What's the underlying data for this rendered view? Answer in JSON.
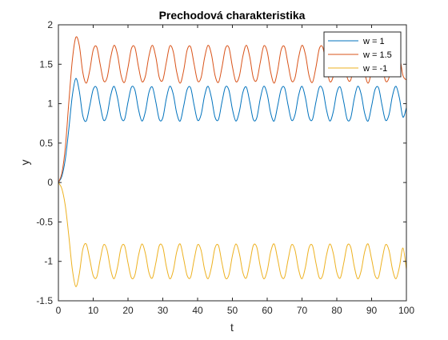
{
  "chart_data": {
    "type": "line",
    "title": "Prechodová charakteristika",
    "xlabel": "t",
    "ylabel": "y",
    "xlim": [
      0,
      100
    ],
    "ylim": [
      -1.5,
      2
    ],
    "x_ticks": [
      0,
      10,
      20,
      30,
      40,
      50,
      60,
      70,
      80,
      90,
      100
    ],
    "x_tick_labels": [
      "0",
      "10",
      "20",
      "30",
      "40",
      "50",
      "60",
      "70",
      "80",
      "90",
      "100"
    ],
    "y_ticks": [
      -1.5,
      -1,
      -0.5,
      0,
      0.5,
      1,
      1.5,
      2
    ],
    "y_tick_labels": [
      "-1.5",
      "-1",
      "-0.5",
      "0",
      "0.5",
      "1",
      "1.5",
      "2"
    ],
    "grid": false,
    "legend_position": "top-right",
    "series": [
      {
        "name": "w = 1",
        "color": "#0072BD",
        "x": [
          0,
          1,
          2,
          3,
          4,
          5,
          6,
          7,
          8,
          9,
          10,
          11,
          12,
          13,
          14,
          15,
          16,
          17,
          18,
          19,
          20,
          21,
          22,
          23,
          24,
          25,
          26,
          27,
          28,
          29,
          30,
          31,
          32,
          33,
          34,
          35,
          36,
          37,
          38,
          39,
          40,
          41,
          42,
          43,
          44,
          45,
          46,
          47,
          48,
          49,
          50,
          51,
          52,
          53,
          54,
          55,
          56,
          57,
          58,
          59,
          60,
          61,
          62,
          63,
          64,
          65,
          66,
          67,
          68,
          69,
          70,
          71,
          72,
          73,
          74,
          75,
          76,
          77,
          78,
          79,
          80,
          81,
          82,
          83,
          84,
          85,
          86,
          87,
          88,
          89,
          90,
          91,
          92,
          93,
          94,
          95,
          96,
          97,
          98,
          99,
          100
        ],
        "y": [
          0,
          0.08,
          0.3,
          0.68,
          1.1,
          1.32,
          1.16,
          0.85,
          0.78,
          0.97,
          1.18,
          1.2,
          0.98,
          0.79,
          0.86,
          1.1,
          1.22,
          1.07,
          0.83,
          0.8,
          1.02,
          1.21,
          1.17,
          0.93,
          0.78,
          0.9,
          1.14,
          1.21,
          1.02,
          0.8,
          0.82,
          1.06,
          1.22,
          1.12,
          0.88,
          0.78,
          0.97,
          1.18,
          1.2,
          0.98,
          0.79,
          0.86,
          1.1,
          1.22,
          1.07,
          0.83,
          0.8,
          1.02,
          1.21,
          1.17,
          0.93,
          0.78,
          0.9,
          1.14,
          1.21,
          1.02,
          0.8,
          0.82,
          1.06,
          1.22,
          1.12,
          0.88,
          0.78,
          0.97,
          1.18,
          1.2,
          0.98,
          0.79,
          0.86,
          1.1,
          1.22,
          1.07,
          0.83,
          0.8,
          1.02,
          1.21,
          1.17,
          0.93,
          0.78,
          0.9,
          1.14,
          1.21,
          1.02,
          0.8,
          0.82,
          1.06,
          1.22,
          1.12,
          0.88,
          0.78,
          0.97,
          1.18,
          1.2,
          0.98,
          0.79,
          0.86,
          1.1,
          1.22,
          1.07,
          0.83,
          0.95
        ]
      },
      {
        "name": "w = 1.5",
        "color": "#D95319",
        "x": [
          0,
          1,
          2,
          3,
          4,
          5,
          6,
          7,
          8,
          9,
          10,
          11,
          12,
          13,
          14,
          15,
          16,
          17,
          18,
          19,
          20,
          21,
          22,
          23,
          24,
          25,
          26,
          27,
          28,
          29,
          30,
          31,
          32,
          33,
          34,
          35,
          36,
          37,
          38,
          39,
          40,
          41,
          42,
          43,
          44,
          45,
          46,
          47,
          48,
          49,
          50,
          51,
          52,
          53,
          54,
          55,
          56,
          57,
          58,
          59,
          60,
          61,
          62,
          63,
          64,
          65,
          66,
          67,
          68,
          69,
          70,
          71,
          72,
          73,
          74,
          75,
          76,
          77,
          78,
          79,
          80,
          81,
          82,
          83,
          84,
          85,
          86,
          87,
          88,
          89,
          90,
          91,
          92,
          93,
          94,
          95,
          96,
          97,
          98,
          99,
          100
        ],
        "y": [
          0,
          0.12,
          0.45,
          1.02,
          1.55,
          1.84,
          1.74,
          1.4,
          1.26,
          1.42,
          1.68,
          1.72,
          1.5,
          1.29,
          1.33,
          1.58,
          1.74,
          1.62,
          1.36,
          1.27,
          1.46,
          1.7,
          1.71,
          1.47,
          1.28,
          1.35,
          1.6,
          1.74,
          1.59,
          1.33,
          1.3,
          1.52,
          1.73,
          1.66,
          1.4,
          1.26,
          1.42,
          1.68,
          1.72,
          1.5,
          1.29,
          1.33,
          1.58,
          1.74,
          1.62,
          1.36,
          1.27,
          1.46,
          1.7,
          1.71,
          1.47,
          1.28,
          1.35,
          1.6,
          1.74,
          1.59,
          1.33,
          1.3,
          1.52,
          1.73,
          1.66,
          1.4,
          1.26,
          1.42,
          1.68,
          1.72,
          1.5,
          1.29,
          1.33,
          1.58,
          1.74,
          1.62,
          1.36,
          1.27,
          1.46,
          1.7,
          1.71,
          1.47,
          1.28,
          1.35,
          1.6,
          1.74,
          1.59,
          1.33,
          1.3,
          1.52,
          1.73,
          1.66,
          1.4,
          1.26,
          1.42,
          1.68,
          1.72,
          1.5,
          1.29,
          1.33,
          1.58,
          1.74,
          1.62,
          1.36,
          1.3
        ]
      },
      {
        "name": "w = -1",
        "color": "#EDB120",
        "x": [
          0,
          1,
          2,
          3,
          4,
          5,
          6,
          7,
          8,
          9,
          10,
          11,
          12,
          13,
          14,
          15,
          16,
          17,
          18,
          19,
          20,
          21,
          22,
          23,
          24,
          25,
          26,
          27,
          28,
          29,
          30,
          31,
          32,
          33,
          34,
          35,
          36,
          37,
          38,
          39,
          40,
          41,
          42,
          43,
          44,
          45,
          46,
          47,
          48,
          49,
          50,
          51,
          52,
          53,
          54,
          55,
          56,
          57,
          58,
          59,
          60,
          61,
          62,
          63,
          64,
          65,
          66,
          67,
          68,
          69,
          70,
          71,
          72,
          73,
          74,
          75,
          76,
          77,
          78,
          79,
          80,
          81,
          82,
          83,
          84,
          85,
          86,
          87,
          88,
          89,
          90,
          91,
          92,
          93,
          94,
          95,
          96,
          97,
          98,
          99,
          100
        ],
        "y": [
          0,
          -0.08,
          -0.3,
          -0.68,
          -1.1,
          -1.32,
          -1.16,
          -0.85,
          -0.78,
          -0.97,
          -1.18,
          -1.2,
          -0.98,
          -0.79,
          -0.86,
          -1.1,
          -1.22,
          -1.07,
          -0.83,
          -0.8,
          -1.02,
          -1.21,
          -1.17,
          -0.93,
          -0.78,
          -0.9,
          -1.14,
          -1.21,
          -1.02,
          -0.8,
          -0.82,
          -1.06,
          -1.22,
          -1.12,
          -0.88,
          -0.78,
          -0.97,
          -1.18,
          -1.2,
          -0.98,
          -0.79,
          -0.86,
          -1.1,
          -1.22,
          -1.07,
          -0.83,
          -0.8,
          -1.02,
          -1.21,
          -1.17,
          -0.93,
          -0.78,
          -0.9,
          -1.14,
          -1.21,
          -1.02,
          -0.8,
          -0.82,
          -1.06,
          -1.22,
          -1.12,
          -0.88,
          -0.78,
          -0.97,
          -1.18,
          -1.2,
          -0.98,
          -0.79,
          -0.86,
          -1.1,
          -1.22,
          -1.07,
          -0.83,
          -0.8,
          -1.02,
          -1.21,
          -1.17,
          -0.93,
          -0.78,
          -0.9,
          -1.14,
          -1.21,
          -1.02,
          -0.8,
          -0.82,
          -1.06,
          -1.22,
          -1.12,
          -0.88,
          -0.78,
          -0.97,
          -1.18,
          -1.2,
          -0.98,
          -0.79,
          -0.86,
          -1.1,
          -1.22,
          -1.07,
          -0.83,
          -1.1
        ]
      }
    ]
  }
}
